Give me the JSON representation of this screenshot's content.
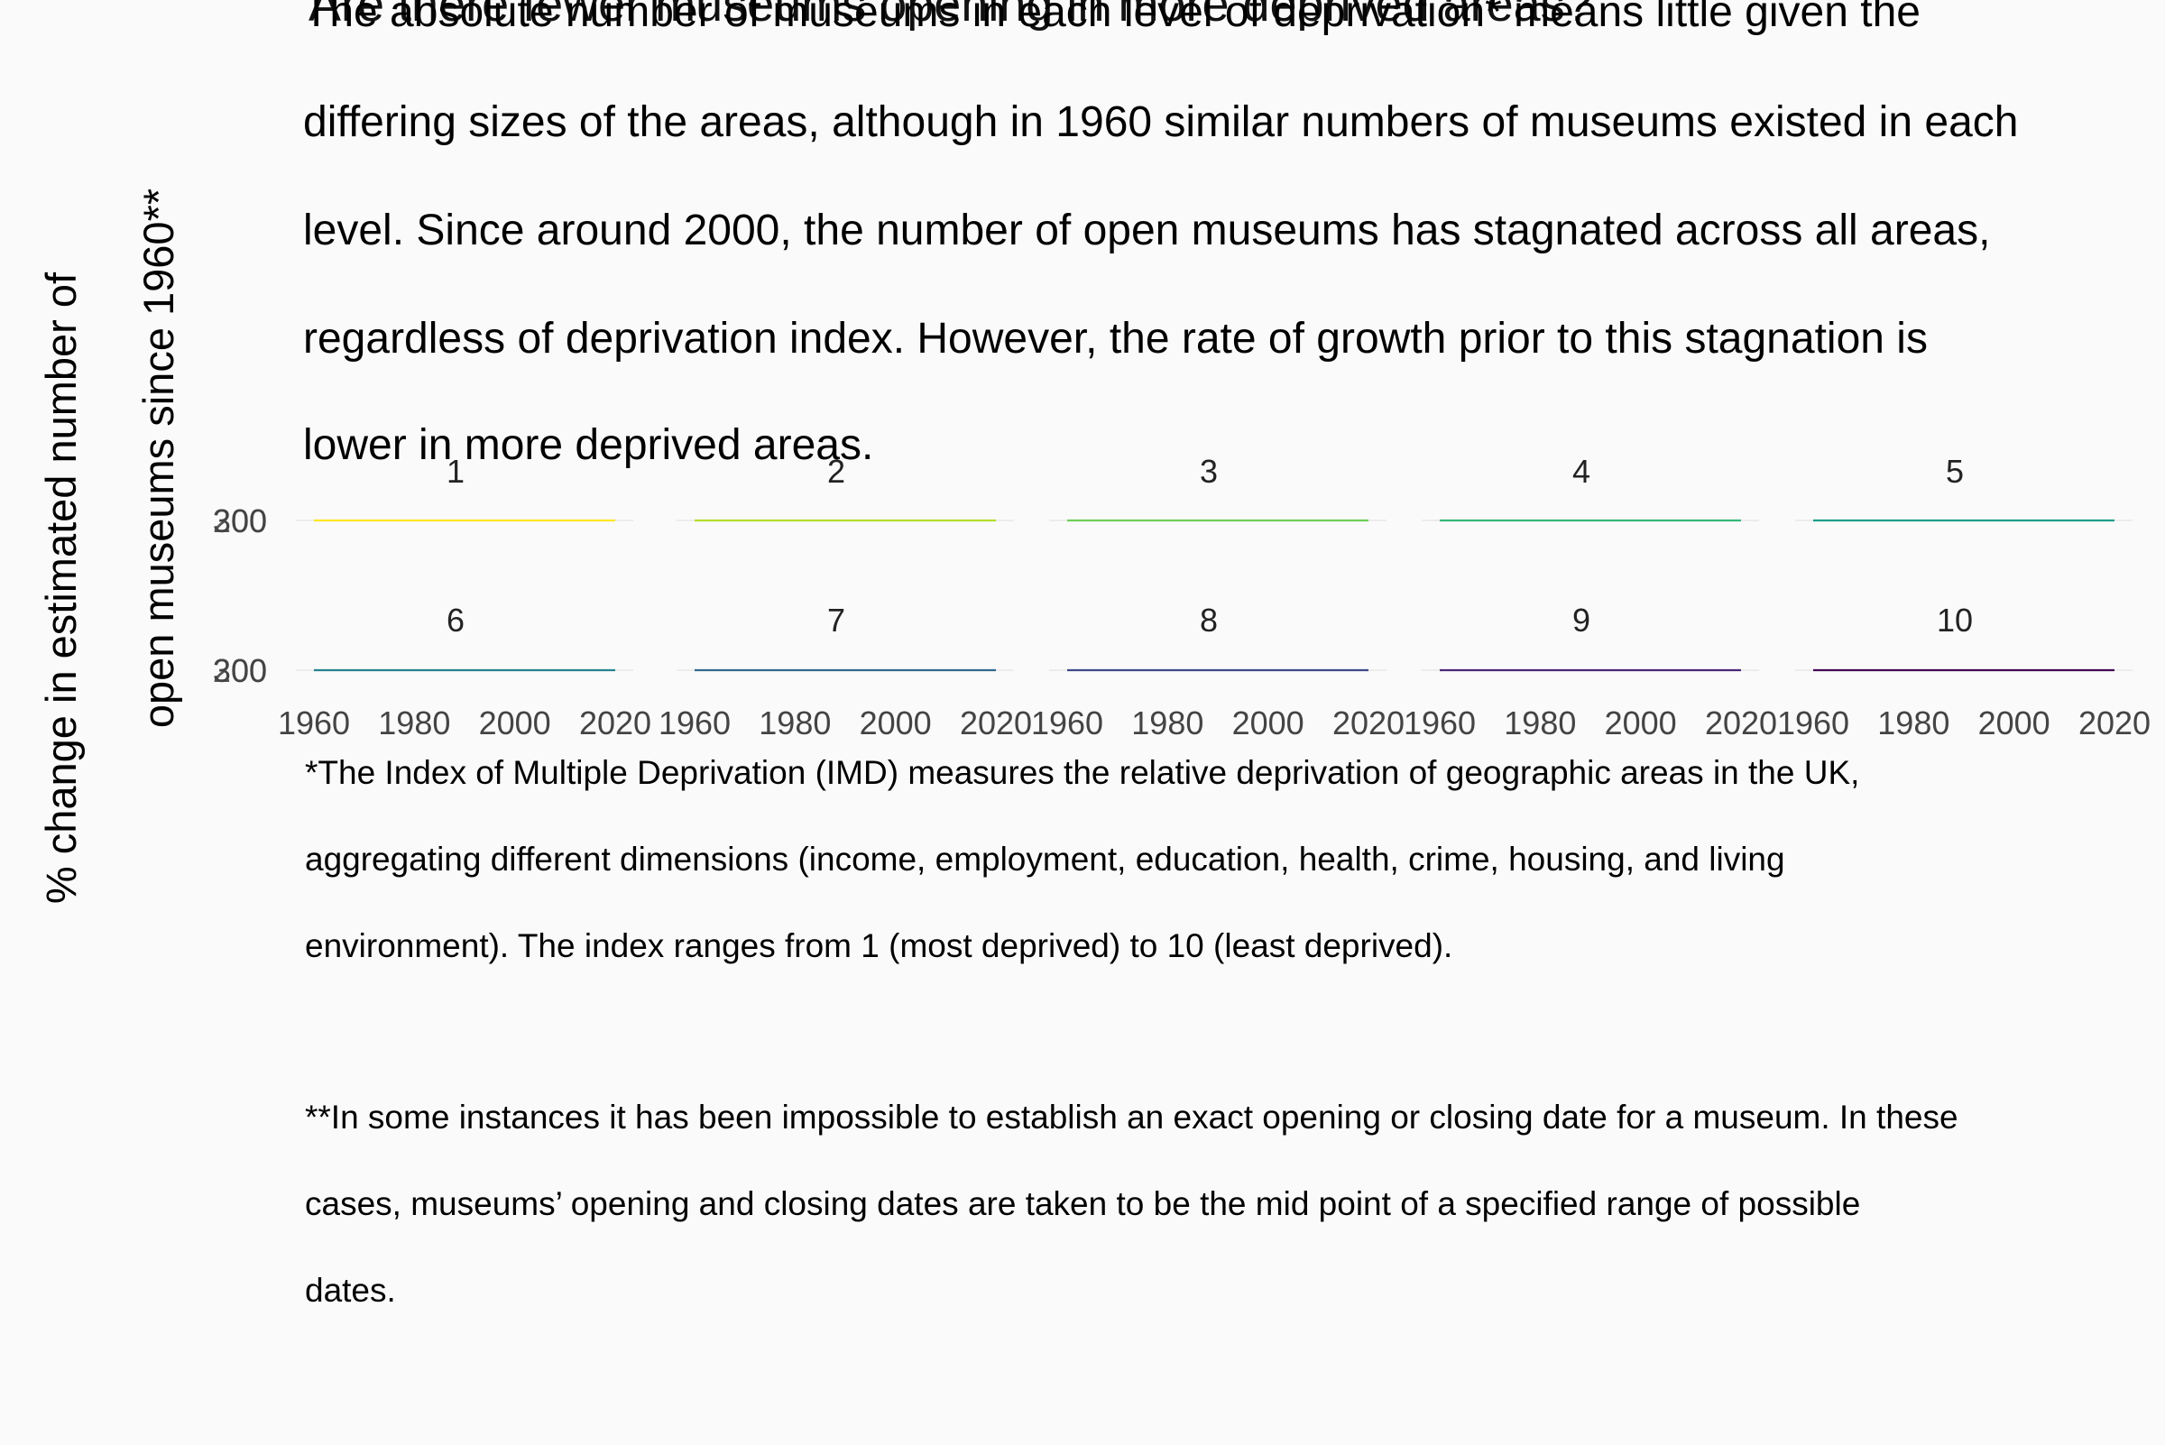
{
  "title": "Are there fewer museums opening in more deprived areas?",
  "intro_lines": [
    "The absolute number of museums in each level of deprivation* means little given the",
    "differing sizes of the areas, although in 1960 similar numbers of museums existed in each",
    "level. Since around 2000, the number of open museums has stagnated across all areas,",
    "regardless of deprivation index. However, the rate of growth prior to this stagnation is",
    "lower in more deprived areas."
  ],
  "y_axis_title": [
    "% change in estimated number of",
    "open museums since 1960**"
  ],
  "footnotes": {
    "imd_lines": [
      "*The Index of Multiple Deprivation (IMD) measures the relative deprivation of geographic areas in the UK,",
      "aggregating different dimensions (income, employment, education, health, crime, housing, and living",
      "environment). The index ranges from 1 (most deprived) to 10 (least deprived)."
    ],
    "dates_lines": [
      "**In some instances it has been impossible to establish an exact opening or closing date for a museum. In these",
      "cases, museums’ opening and closing dates are taken to be the mid point of a specified range of possible",
      "dates."
    ]
  },
  "chart_data": {
    "type": "line",
    "facet_by": "deprivation decile",
    "layout": "2 rows x 5 columns",
    "x": [
      1960,
      1980,
      2000,
      2020
    ],
    "x_ticks": [
      "1960",
      "1980",
      "2000",
      "2020"
    ],
    "xlim": [
      1960,
      2020
    ],
    "y_tick_labels": [
      "200",
      "300"
    ],
    "ylabel": "% change in estimated number of open museums since 1960**",
    "grid": true,
    "legend": "none",
    "series": [
      {
        "name": "1",
        "color": "#fde725",
        "values": [
          200,
          200,
          200,
          200
        ]
      },
      {
        "name": "2",
        "color": "#b5de2b",
        "values": [
          200,
          200,
          200,
          200
        ]
      },
      {
        "name": "3",
        "color": "#6ece58",
        "values": [
          200,
          200,
          200,
          200
        ]
      },
      {
        "name": "4",
        "color": "#35b779",
        "values": [
          200,
          200,
          200,
          200
        ]
      },
      {
        "name": "5",
        "color": "#1f9e89",
        "values": [
          200,
          200,
          200,
          200
        ]
      },
      {
        "name": "6",
        "color": "#26828e",
        "values": [
          200,
          200,
          200,
          200
        ]
      },
      {
        "name": "7",
        "color": "#31688e",
        "values": [
          200,
          200,
          200,
          200
        ]
      },
      {
        "name": "8",
        "color": "#3e4989",
        "values": [
          200,
          200,
          200,
          200
        ]
      },
      {
        "name": "9",
        "color": "#482878",
        "values": [
          200,
          200,
          200,
          200
        ]
      },
      {
        "name": "10",
        "color": "#440154",
        "values": [
          200,
          200,
          200,
          200
        ]
      }
    ]
  }
}
